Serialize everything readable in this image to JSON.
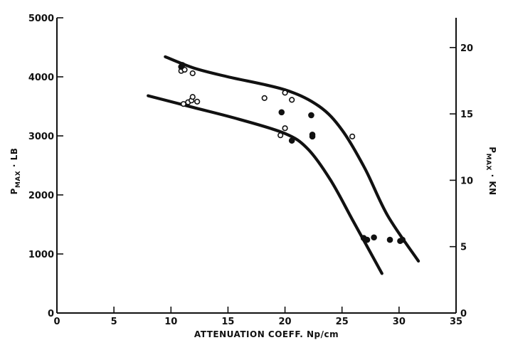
{
  "chart_data": {
    "type": "scatter",
    "xlabel": "ATTENUATION COEFF. Np/cm",
    "ylabel": {
      "main": "P",
      "sub": "MAX",
      "unit": " · LB"
    },
    "y2label": {
      "main": "P",
      "sub": "MAX",
      "unit": " · KN"
    },
    "xlim": [
      0,
      35
    ],
    "ylim": [
      0,
      5000
    ],
    "y2lim": [
      0,
      22.24
    ],
    "x_ticks": [
      0,
      5,
      10,
      15,
      20,
      25,
      30,
      35
    ],
    "y_ticks": [
      0,
      1000,
      2000,
      3000,
      4000,
      5000
    ],
    "y2_ticks": [
      0,
      5,
      10,
      15,
      20
    ],
    "grid": false,
    "series": [
      {
        "marker": "open-circle",
        "points": [
          [
            10.9,
            4100
          ],
          [
            11.2,
            4120
          ],
          [
            11.9,
            4060
          ],
          [
            11.1,
            3540
          ],
          [
            11.5,
            3570
          ],
          [
            11.8,
            3600
          ],
          [
            11.9,
            3660
          ],
          [
            12.3,
            3580
          ],
          [
            18.2,
            3640
          ],
          [
            20.0,
            3730
          ],
          [
            20.6,
            3610
          ],
          [
            19.6,
            3010
          ],
          [
            20.0,
            3130
          ],
          [
            25.9,
            2990
          ]
        ]
      },
      {
        "marker": "filled-circle",
        "points": [
          [
            10.9,
            4170
          ],
          [
            11.0,
            4200
          ],
          [
            19.7,
            3400
          ],
          [
            22.3,
            3350
          ],
          [
            22.4,
            3020
          ],
          [
            22.4,
            2990
          ],
          [
            20.6,
            2920
          ],
          [
            26.9,
            1270
          ],
          [
            27.2,
            1240
          ],
          [
            27.8,
            1280
          ],
          [
            29.2,
            1240
          ],
          [
            30.1,
            1220
          ],
          [
            30.3,
            1240
          ]
        ]
      }
    ],
    "curves": [
      {
        "name": "upper",
        "points": [
          [
            9.5,
            4340
          ],
          [
            12,
            4150
          ],
          [
            15,
            4000
          ],
          [
            20,
            3780
          ],
          [
            23,
            3500
          ],
          [
            25,
            3100
          ],
          [
            27,
            2450
          ],
          [
            29,
            1650
          ],
          [
            31.7,
            880
          ]
        ]
      },
      {
        "name": "lower",
        "points": [
          [
            8,
            3680
          ],
          [
            12,
            3480
          ],
          [
            16,
            3280
          ],
          [
            20,
            3040
          ],
          [
            22,
            2780
          ],
          [
            24,
            2250
          ],
          [
            26,
            1550
          ],
          [
            28.5,
            670
          ]
        ]
      }
    ]
  }
}
